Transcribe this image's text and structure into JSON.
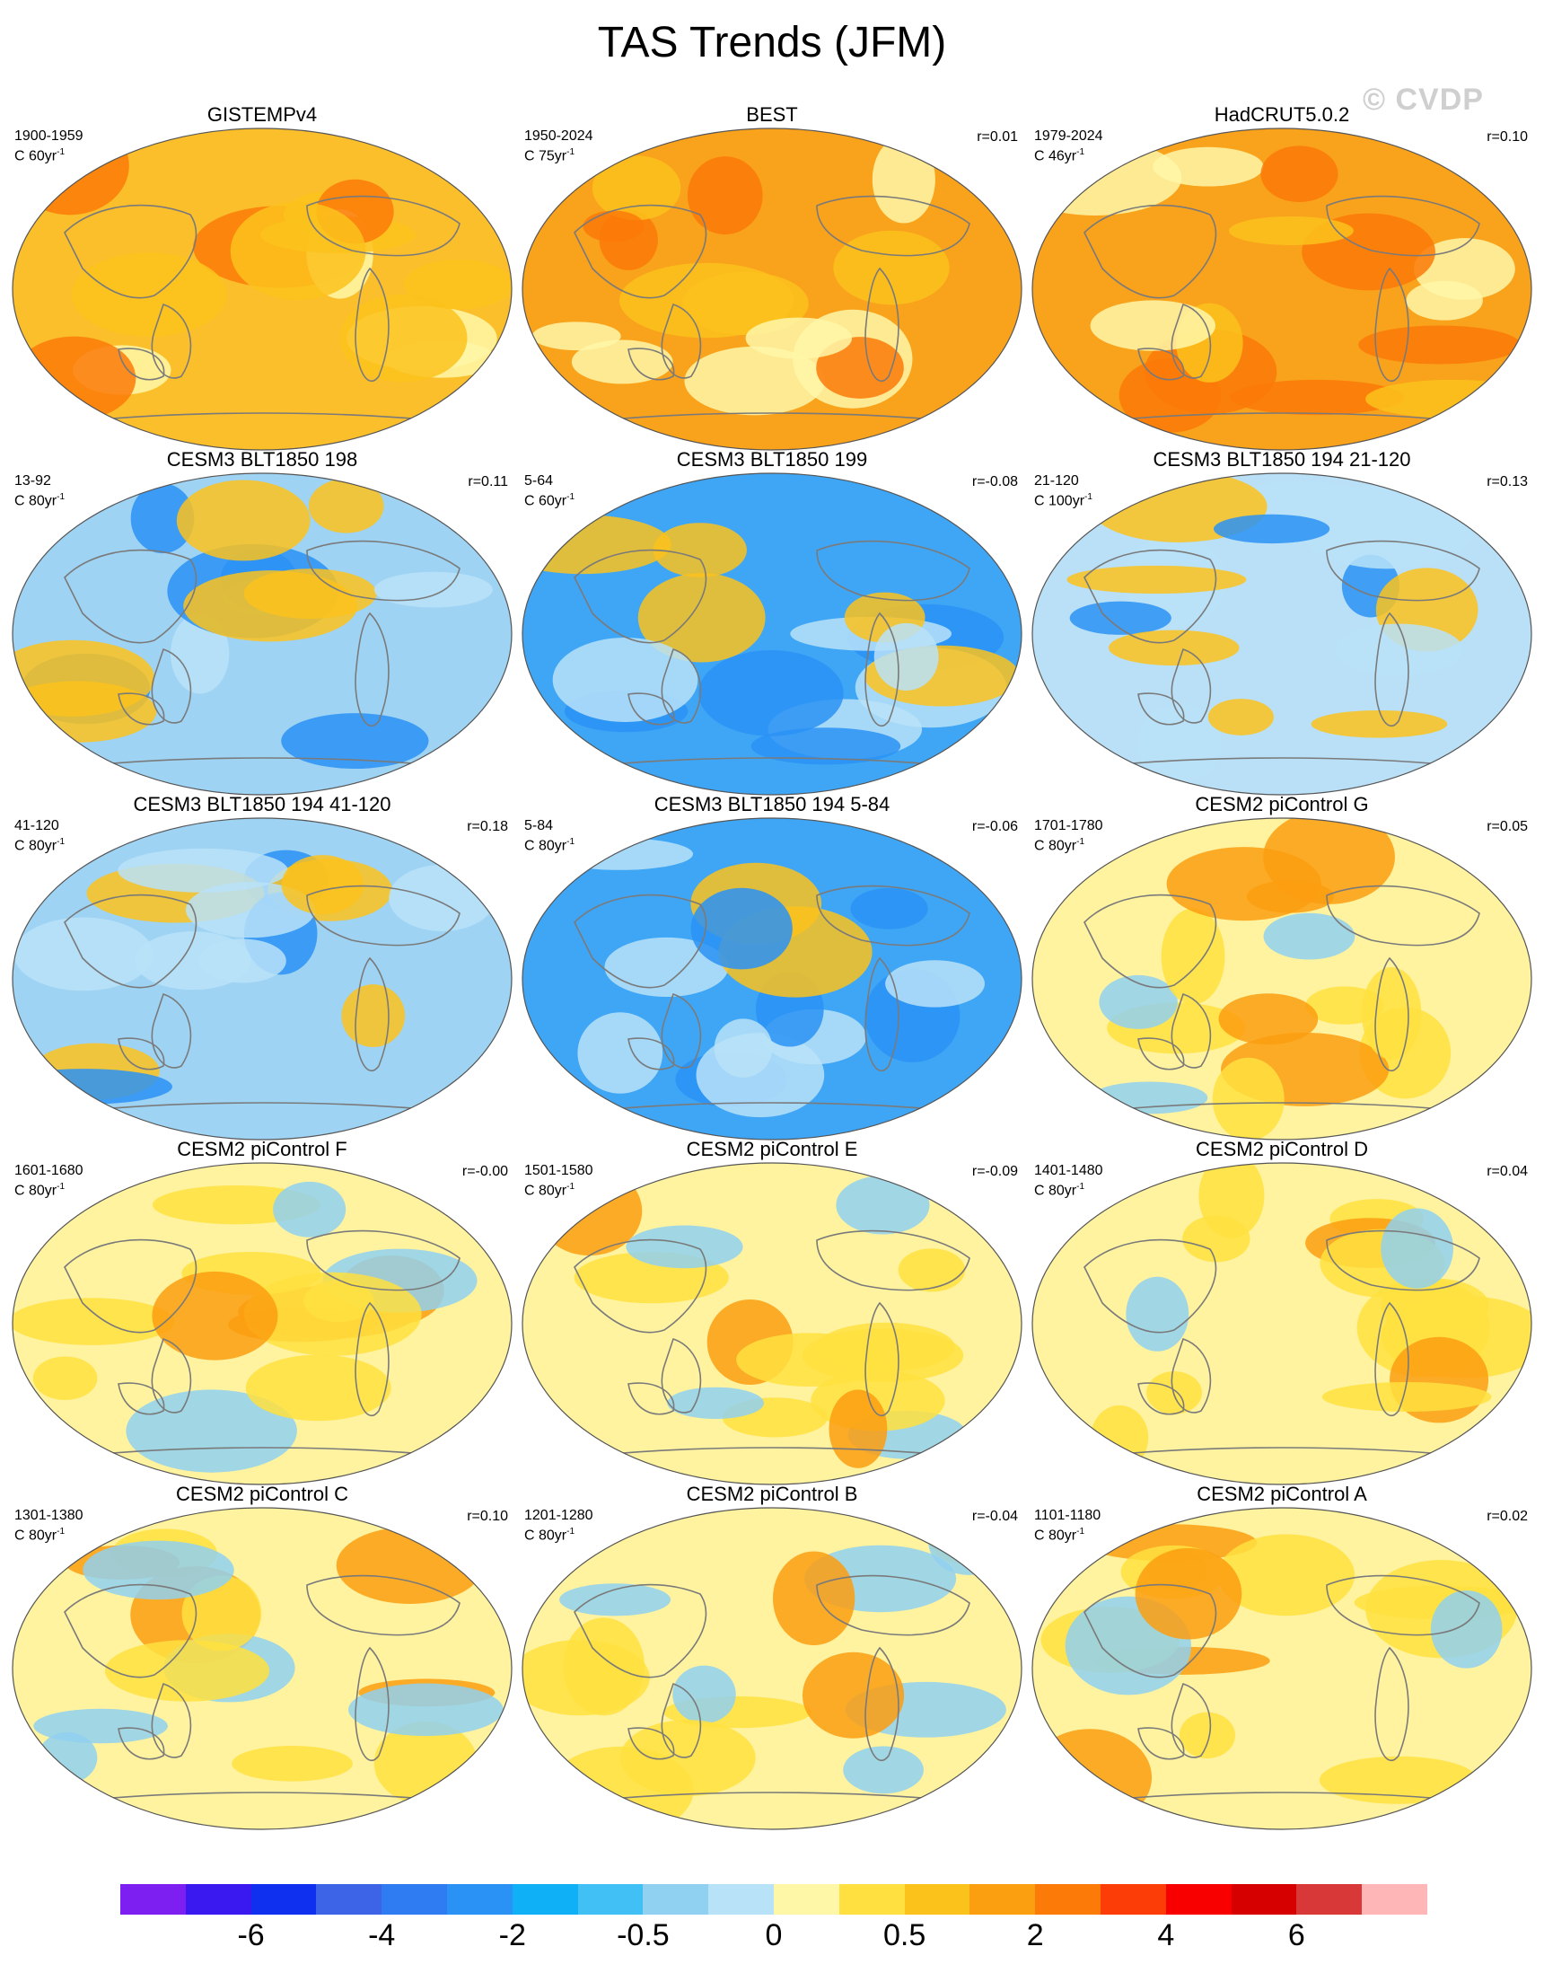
{
  "title": "TAS Trends (JFM)",
  "watermark": "© CVDP",
  "panels": [
    {
      "title": "GISTEMPv4",
      "period": "1900-1959",
      "unit_prefix": "C 60yr",
      "corr": "",
      "base": "#fbbf2c"
    },
    {
      "title": "BEST",
      "period": "1950-2024",
      "unit_prefix": "C 75yr",
      "corr": "r=0.01",
      "base": "#f9a21b"
    },
    {
      "title": "HadCRUT5.0.2",
      "period": "1979-2024",
      "unit_prefix": "C 46yr",
      "corr": "r=0.10",
      "base": "#f9a21b"
    },
    {
      "title": "CESM3 BLT1850 198",
      "period": "13-92",
      "unit_prefix": "C 80yr",
      "corr": "r=0.11",
      "base": "#9fd3f3"
    },
    {
      "title": "CESM3 BLT1850 199",
      "period": "5-64",
      "unit_prefix": "C 60yr",
      "corr": "r=-0.08",
      "base": "#3fa6f5"
    },
    {
      "title": "CESM3 BLT1850 194 21-120",
      "period": "21-120",
      "unit_prefix": "C 100yr",
      "corr": "r=0.13",
      "base": "#b9e0f7"
    },
    {
      "title": "CESM3 BLT1850 194 41-120",
      "period": "41-120",
      "unit_prefix": "C 80yr",
      "corr": "r=0.18",
      "base": "#9fd3f3"
    },
    {
      "title": "CESM3 BLT1850 194 5-84",
      "period": "5-84",
      "unit_prefix": "C 80yr",
      "corr": "r=-0.06",
      "base": "#3fa6f5"
    },
    {
      "title": "CESM2 piControl G",
      "period": "1701-1780",
      "unit_prefix": "C 80yr",
      "corr": "r=0.05",
      "base": "#fff3a0"
    },
    {
      "title": "CESM2 piControl F",
      "period": "1601-1680",
      "unit_prefix": "C 80yr",
      "corr": "r=-0.00",
      "base": "#fff3a0"
    },
    {
      "title": "CESM2 piControl E",
      "period": "1501-1580",
      "unit_prefix": "C 80yr",
      "corr": "r=-0.09",
      "base": "#fff3a0"
    },
    {
      "title": "CESM2 piControl D",
      "period": "1401-1480",
      "unit_prefix": "C 80yr",
      "corr": "r=0.04",
      "base": "#fff3a0"
    },
    {
      "title": "CESM2 piControl C",
      "period": "1301-1380",
      "unit_prefix": "C 80yr",
      "corr": "r=0.10",
      "base": "#fff3a0"
    },
    {
      "title": "CESM2 piControl B",
      "period": "1201-1280",
      "unit_prefix": "C 80yr",
      "corr": "r=-0.04",
      "base": "#fff3a0"
    },
    {
      "title": "CESM2 piControl A",
      "period": "1101-1180",
      "unit_prefix": "C 80yr",
      "corr": "r=0.02",
      "base": "#fff3a0"
    }
  ],
  "unit_exponent": "-1",
  "colorbar": {
    "colors": [
      "#7d1ff0",
      "#3a18f0",
      "#1030f0",
      "#3d64e6",
      "#2f7bf2",
      "#2a92f5",
      "#0fb0f5",
      "#40c0f5",
      "#90d0f0",
      "#b8e2f8",
      "#fff7a8",
      "#ffe040",
      "#fcc21c",
      "#fb9e10",
      "#fb7a08",
      "#fc3d08",
      "#f80000",
      "#d60000",
      "#d83838",
      "#ffb6b6"
    ],
    "labels": [
      "-6",
      "-4",
      "-2",
      "-0.5",
      "0",
      "0.5",
      "2",
      "4",
      "6"
    ],
    "label_boundaries": [
      2,
      4,
      6,
      8,
      10,
      12,
      14,
      16,
      18
    ]
  }
}
